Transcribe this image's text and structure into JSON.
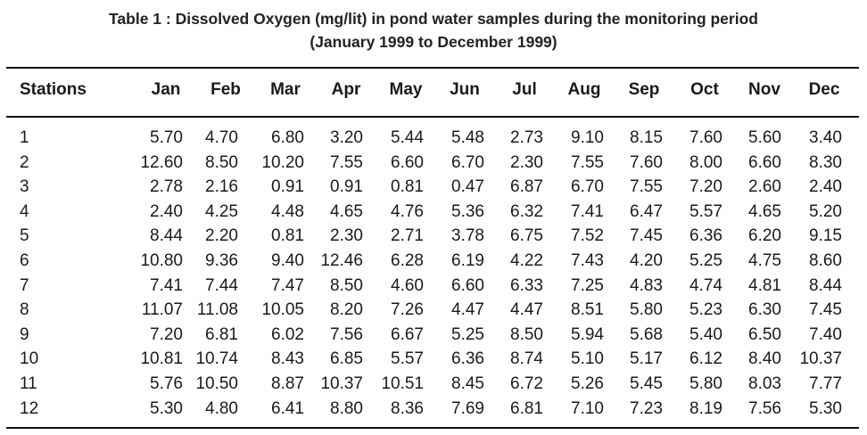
{
  "table": {
    "caption_line1": "Table 1 : Dissolved Oxygen (mg/lit) in pond water samples during the monitoring period",
    "caption_line2": "(January 1999 to December 1999)",
    "header_stations": "Stations",
    "months": [
      "Jan",
      "Feb",
      "Mar",
      "Apr",
      "May",
      "Jun",
      "Jul",
      "Aug",
      "Sep",
      "Oct",
      "Nov",
      "Dec"
    ],
    "rows": [
      {
        "station": "1",
        "values": [
          "5.70",
          "4.70",
          "6.80",
          "3.20",
          "5.44",
          "5.48",
          "2.73",
          "9.10",
          "8.15",
          "7.60",
          "5.60",
          "3.40"
        ]
      },
      {
        "station": "2",
        "values": [
          "12.60",
          "8.50",
          "10.20",
          "7.55",
          "6.60",
          "6.70",
          "2.30",
          "7.55",
          "7.60",
          "8.00",
          "6.60",
          "8.30"
        ]
      },
      {
        "station": "3",
        "values": [
          "2.78",
          "2.16",
          "0.91",
          "0.91",
          "0.81",
          "0.47",
          "6.87",
          "6.70",
          "7.55",
          "7.20",
          "2.60",
          "2.40"
        ]
      },
      {
        "station": "4",
        "values": [
          "2.40",
          "4.25",
          "4.48",
          "4.65",
          "4.76",
          "5.36",
          "6.32",
          "7.41",
          "6.47",
          "5.57",
          "4.65",
          "5.20"
        ]
      },
      {
        "station": "5",
        "values": [
          "8.44",
          "2.20",
          "0.81",
          "2.30",
          "2.71",
          "3.78",
          "6.75",
          "7.52",
          "7.45",
          "6.36",
          "6.20",
          "9.15"
        ]
      },
      {
        "station": "6",
        "values": [
          "10.80",
          "9.36",
          "9.40",
          "12.46",
          "6.28",
          "6.19",
          "4.22",
          "7.43",
          "4.20",
          "5.25",
          "4.75",
          "8.60"
        ]
      },
      {
        "station": "7",
        "values": [
          "7.41",
          "7.44",
          "7.47",
          "8.50",
          "4.60",
          "6.60",
          "6.33",
          "7.25",
          "4.83",
          "4.74",
          "4.81",
          "8.44"
        ]
      },
      {
        "station": "8",
        "values": [
          "11.07",
          "11.08",
          "10.05",
          "8.20",
          "7.26",
          "4.47",
          "4.47",
          "8.51",
          "5.80",
          "5.23",
          "6.30",
          "7.45"
        ]
      },
      {
        "station": "9",
        "values": [
          "7.20",
          "6.81",
          "6.02",
          "7.56",
          "6.67",
          "5.25",
          "8.50",
          "5.94",
          "5.68",
          "5.40",
          "6.50",
          "7.40"
        ]
      },
      {
        "station": "10",
        "values": [
          "10.81",
          "10.74",
          "8.43",
          "6.85",
          "5.57",
          "6.36",
          "8.74",
          "5.10",
          "5.17",
          "6.12",
          "8.40",
          "10.37"
        ]
      },
      {
        "station": "11",
        "values": [
          "5.76",
          "10.50",
          "8.87",
          "10.37",
          "10.51",
          "8.45",
          "6.72",
          "5.26",
          "5.45",
          "5.80",
          "8.03",
          "7.77"
        ]
      },
      {
        "station": "12",
        "values": [
          "5.30",
          "4.80",
          "6.41",
          "8.80",
          "8.36",
          "7.69",
          "6.81",
          "7.10",
          "7.23",
          "8.19",
          "7.56",
          "5.30"
        ]
      }
    ]
  }
}
